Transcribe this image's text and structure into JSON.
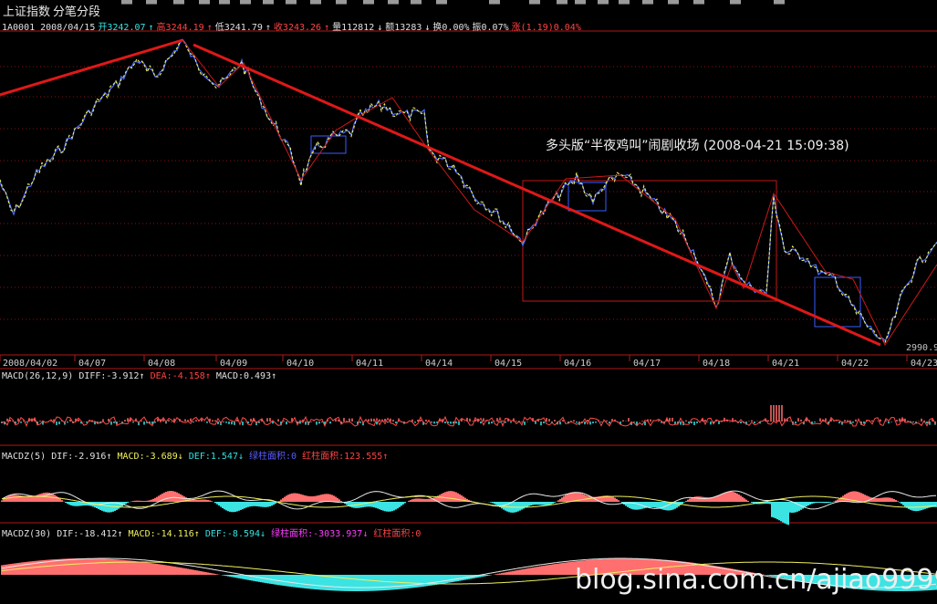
{
  "window": {
    "title": "上证指数",
    "subtitle": "分笔分段"
  },
  "info_bar": {
    "code_date": "1A0001 2008/04/15",
    "open": "开3242.07",
    "high": "高3244.19",
    "low": "低3241.79",
    "close": "收3243.26",
    "volume": "量112812",
    "amount": "额13283",
    "turnover": "换0.00%",
    "amplitude": "振0.07%",
    "change": "涨(1.19)0.04%"
  },
  "main_chart": {
    "annotation": "多头版“半夜鸡叫”闹剧收场  (2008-04-21 15:09:38)",
    "low_value": "2990.9",
    "x_ticks": [
      "2008/04/02",
      "04/07",
      "04/08",
      "04/09",
      "04/10",
      "04/11",
      "04/14",
      "04/15",
      "04/16",
      "04/17",
      "04/18",
      "04/21",
      "04/22",
      "04/23"
    ]
  },
  "macd1": {
    "name": "MACD(26,12,9)",
    "diff": "DIFF:-3.912",
    "dea": "DEA:-4.158",
    "macd": "MACD:0.493"
  },
  "macd2": {
    "name": "MACDZ(5)",
    "dif": "DIF:-2.916",
    "macd": "MACD:-3.689",
    "def": "DEF:1.547",
    "green_area": "绿柱面积:0",
    "red_area": "红柱面积:123.555"
  },
  "macd3": {
    "name": "MACDZ(30)",
    "dif": "DIF:-18.412",
    "macd": "MACD:-14.116",
    "def": "DEF:-8.594",
    "green_area": "绿柱面积:-3033.937",
    "red_area": "红柱面积:0"
  },
  "watermark": "blog.sina.com.cn/ajiao9999",
  "colors": {
    "trend_line": "#e01818",
    "price_yellow": "#f0f060",
    "price_blue": "#4a6cff",
    "frame_red": "#c01818",
    "bar_red": "#ff6f6f",
    "bar_cyan": "#3ce3e3"
  }
}
